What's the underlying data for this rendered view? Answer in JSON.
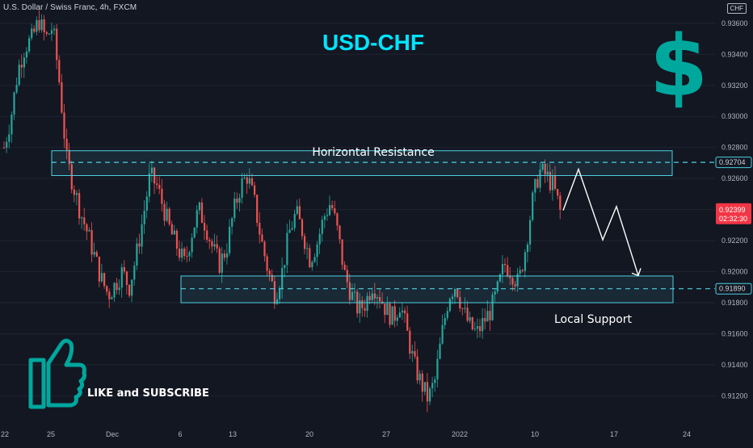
{
  "header": {
    "symbol_info": "U.S. Dollar / Swiss Franc, 4h, FXCM",
    "currency": "CHF"
  },
  "chart_data": {
    "type": "candlestick",
    "title": "USD-CHF",
    "ylim": [
      0.9102,
      0.9375
    ],
    "y_ticks": [
      0.936,
      0.934,
      0.932,
      0.93,
      0.928,
      0.926,
      0.924,
      0.922,
      0.92,
      0.918,
      0.916,
      0.914,
      0.912
    ],
    "y_tick_labels": [
      "0.93600",
      "0.93400",
      "0.93200",
      "0.93000",
      "0.92800",
      "0.92600",
      "0.92400",
      "0.92200",
      "0.92000",
      "0.91800",
      "0.91600",
      "0.91400",
      "0.91200"
    ],
    "x_ticks": [
      "22",
      "25",
      "Dec",
      "6",
      "13",
      "20",
      "27",
      "2022",
      "10",
      "17",
      "24"
    ],
    "x_range_days": [
      0,
      12
    ],
    "x_tick_positions_days": [
      [
        0,
        0
      ],
      [
        1,
        0
      ],
      [
        0,
        3
      ],
      [
        0,
        6
      ],
      [
        0,
        13
      ],
      [
        0,
        20
      ],
      [
        0,
        27
      ],
      [
        0,
        31
      ],
      [
        0,
        39
      ],
      [
        0,
        46
      ],
      [
        0,
        53
      ]
    ],
    "series_anchors": {
      "name": "",
      "price_path": [
        [
          0,
          0.928
        ],
        [
          1,
          0.93
        ],
        [
          2,
          0.933
        ],
        [
          3,
          0.9345
        ],
        [
          4,
          0.935
        ],
        [
          5,
          0.9362
        ],
        [
          6,
          0.935
        ],
        [
          7,
          0.9358
        ],
        [
          8,
          0.932
        ],
        [
          9,
          0.9272
        ],
        [
          10,
          0.9255
        ],
        [
          11,
          0.9238
        ],
        [
          12,
          0.9225
        ],
        [
          13,
          0.921
        ],
        [
          14,
          0.9195
        ],
        [
          15,
          0.9185
        ],
        [
          16,
          0.9192
        ],
        [
          17,
          0.92
        ],
        [
          18,
          0.919
        ],
        [
          19,
          0.921
        ],
        [
          20,
          0.9235
        ],
        [
          21,
          0.9262
        ],
        [
          22,
          0.9255
        ],
        [
          23,
          0.924
        ],
        [
          24,
          0.9225
        ],
        [
          25,
          0.9215
        ],
        [
          26,
          0.9205
        ],
        [
          27,
          0.9225
        ],
        [
          28,
          0.924
        ],
        [
          29,
          0.923
        ],
        [
          30,
          0.9215
        ],
        [
          31,
          0.9205
        ],
        [
          32,
          0.9215
        ],
        [
          33,
          0.9238
        ],
        [
          34,
          0.9255
        ],
        [
          35,
          0.9262
        ],
        [
          36,
          0.9245
        ],
        [
          37,
          0.922
        ],
        [
          38,
          0.92
        ],
        [
          39,
          0.9185
        ],
        [
          40,
          0.92
        ],
        [
          41,
          0.9225
        ],
        [
          42,
          0.9238
        ],
        [
          43,
          0.9225
        ],
        [
          44,
          0.9208
        ],
        [
          45,
          0.9218
        ],
        [
          46,
          0.9235
        ],
        [
          47,
          0.9245
        ],
        [
          48,
          0.9225
        ],
        [
          49,
          0.9198
        ],
        [
          50,
          0.9185
        ],
        [
          51,
          0.9175
        ],
        [
          52,
          0.918
        ],
        [
          53,
          0.9192
        ],
        [
          54,
          0.9185
        ],
        [
          55,
          0.9175
        ],
        [
          56,
          0.917
        ],
        [
          57,
          0.918
        ],
        [
          58,
          0.916
        ],
        [
          59,
          0.914
        ],
        [
          60,
          0.9128
        ],
        [
          61,
          0.9118
        ],
        [
          62,
          0.913
        ],
        [
          63,
          0.916
        ],
        [
          64,
          0.9185
        ],
        [
          65,
          0.9192
        ],
        [
          66,
          0.9175
        ],
        [
          67,
          0.9165
        ],
        [
          68,
          0.916
        ],
        [
          69,
          0.9168
        ],
        [
          70,
          0.9175
        ],
        [
          71,
          0.9188
        ],
        [
          72,
          0.9205
        ],
        [
          73,
          0.92
        ],
        [
          74,
          0.9192
        ],
        [
          75,
          0.9215
        ],
        [
          76,
          0.9245
        ],
        [
          77,
          0.9265
        ],
        [
          78,
          0.9262
        ],
        [
          79,
          0.9255
        ],
        [
          80,
          0.924
        ]
      ]
    },
    "levels": {
      "resistance": 0.92704,
      "support": 0.9189,
      "last_price": 0.92399
    },
    "annotations": {
      "resistance_label": "Horizontal Resistance",
      "support_label": "Local Support",
      "resistance_tag": "0.92704",
      "support_tag": "0.91890",
      "last_price_tag": "0.92399",
      "countdown": "02:32:30",
      "dollar_sign": "$",
      "cta": "LIKE and SUBSCRIBE"
    },
    "colors": {
      "bull": "#26a69a",
      "bear": "#ef5350",
      "zone_border": "#4dd0e1",
      "title": "#00e5ff",
      "logo": "#00a79d",
      "background": "#131722"
    }
  }
}
